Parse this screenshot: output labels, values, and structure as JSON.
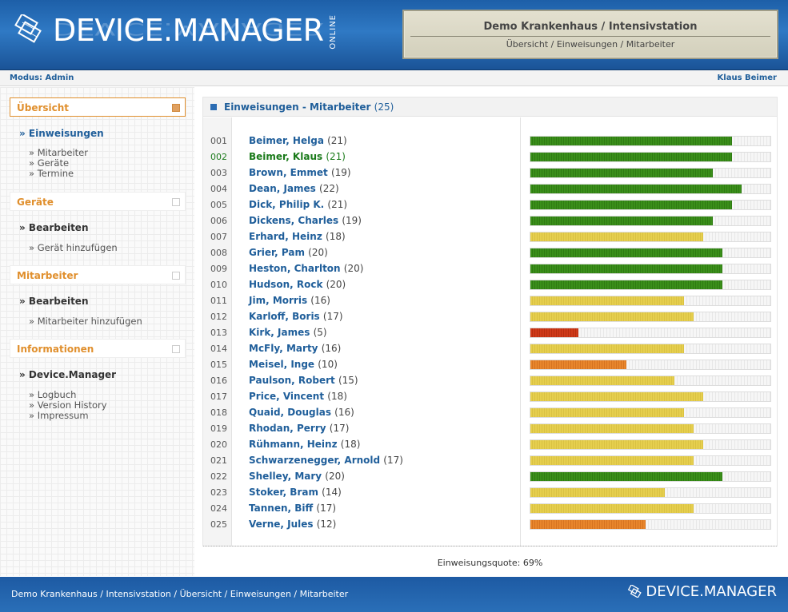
{
  "header": {
    "logo_text": "DEVICE.MANAGER",
    "logo_online": "ONLINE",
    "hospital_title": "Demo Krankenhaus / Intensivstation",
    "breadcrumb": "Übersicht / Einweisungen / Mitarbeiter"
  },
  "modebar": {
    "mode": "Modus: Admin",
    "user": "Klaus Beimer"
  },
  "sidebar": {
    "sections": [
      {
        "title": "Übersicht",
        "main": "» Einweisungen",
        "subs": [
          "» Mitarbeiter",
          "» Geräte",
          "» Termine"
        ]
      },
      {
        "title": "Geräte",
        "main": "» Bearbeiten",
        "subs": [
          "» Gerät hinzufügen"
        ]
      },
      {
        "title": "Mitarbeiter",
        "main": "» Bearbeiten",
        "subs": [
          "» Mitarbeiter hinzufügen"
        ]
      },
      {
        "title": "Informationen",
        "main": "» Device.Manager",
        "subs": [
          "» Logbuch",
          "» Version History",
          "» Impressum"
        ]
      }
    ]
  },
  "panel": {
    "title": "Einweisungen - Mitarbeiter",
    "count": "(25)",
    "rows": [
      {
        "num": "001",
        "name": "Beimer, Helga",
        "count": "(21)",
        "level": 0.84,
        "status": "green"
      },
      {
        "num": "002",
        "name": "Beimer, Klaus",
        "count": "(21)",
        "level": 0.84,
        "status": "green"
      },
      {
        "num": "003",
        "name": "Brown, Emmet",
        "count": "(19)",
        "level": 0.76,
        "status": "green"
      },
      {
        "num": "004",
        "name": "Dean, James",
        "count": "(22)",
        "level": 0.88,
        "status": "green"
      },
      {
        "num": "005",
        "name": "Dick, Philip K.",
        "count": "(21)",
        "level": 0.84,
        "status": "green"
      },
      {
        "num": "006",
        "name": "Dickens, Charles",
        "count": "(19)",
        "level": 0.76,
        "status": "green"
      },
      {
        "num": "007",
        "name": "Erhard, Heinz",
        "count": "(18)",
        "level": 0.72,
        "status": "yellow"
      },
      {
        "num": "008",
        "name": "Grier, Pam",
        "count": "(20)",
        "level": 0.8,
        "status": "green"
      },
      {
        "num": "009",
        "name": "Heston, Charlton",
        "count": "(20)",
        "level": 0.8,
        "status": "green"
      },
      {
        "num": "010",
        "name": "Hudson, Rock",
        "count": "(20)",
        "level": 0.8,
        "status": "green"
      },
      {
        "num": "011",
        "name": "Jim, Morris",
        "count": "(16)",
        "level": 0.64,
        "status": "yellow"
      },
      {
        "num": "012",
        "name": "Karloff, Boris",
        "count": "(17)",
        "level": 0.68,
        "status": "yellow"
      },
      {
        "num": "013",
        "name": "Kirk, James",
        "count": "(5)",
        "level": 0.2,
        "status": "red"
      },
      {
        "num": "014",
        "name": "McFly, Marty",
        "count": "(16)",
        "level": 0.64,
        "status": "yellow"
      },
      {
        "num": "015",
        "name": "Meisel, Inge",
        "count": "(10)",
        "level": 0.4,
        "status": "orange"
      },
      {
        "num": "016",
        "name": "Paulson, Robert",
        "count": "(15)",
        "level": 0.6,
        "status": "yellow"
      },
      {
        "num": "017",
        "name": "Price, Vincent",
        "count": "(18)",
        "level": 0.72,
        "status": "yellow"
      },
      {
        "num": "018",
        "name": "Quaid, Douglas",
        "count": "(16)",
        "level": 0.64,
        "status": "yellow"
      },
      {
        "num": "019",
        "name": "Rhodan, Perry",
        "count": "(17)",
        "level": 0.68,
        "status": "yellow"
      },
      {
        "num": "020",
        "name": "Rühmann, Heinz",
        "count": "(18)",
        "level": 0.72,
        "status": "yellow"
      },
      {
        "num": "021",
        "name": "Schwarzenegger, Arnold",
        "count": "(17)",
        "level": 0.68,
        "status": "yellow"
      },
      {
        "num": "022",
        "name": "Shelley, Mary",
        "count": "(20)",
        "level": 0.8,
        "status": "green"
      },
      {
        "num": "023",
        "name": "Stoker, Bram",
        "count": "(14)",
        "level": 0.56,
        "status": "yellow"
      },
      {
        "num": "024",
        "name": "Tannen, Biff",
        "count": "(17)",
        "level": 0.68,
        "status": "yellow"
      },
      {
        "num": "025",
        "name": "Verne, Jules",
        "count": "(12)",
        "level": 0.48,
        "status": "orange"
      }
    ],
    "quota": "Einweisungsquote: 69%"
  },
  "footer": {
    "breadcrumb": "Demo Krankenhaus / Intensivstation / Übersicht / Einweisungen / Mitarbeiter",
    "logo_text": "DEVICE.MANAGER"
  },
  "colors": {
    "brand_blue": "#1f5e9a",
    "accent_orange": "#e08f2d",
    "status_green": "#3a8f1a",
    "status_yellow": "#e6cf4e",
    "status_orange": "#e8862c",
    "status_red": "#cf3a1a"
  }
}
